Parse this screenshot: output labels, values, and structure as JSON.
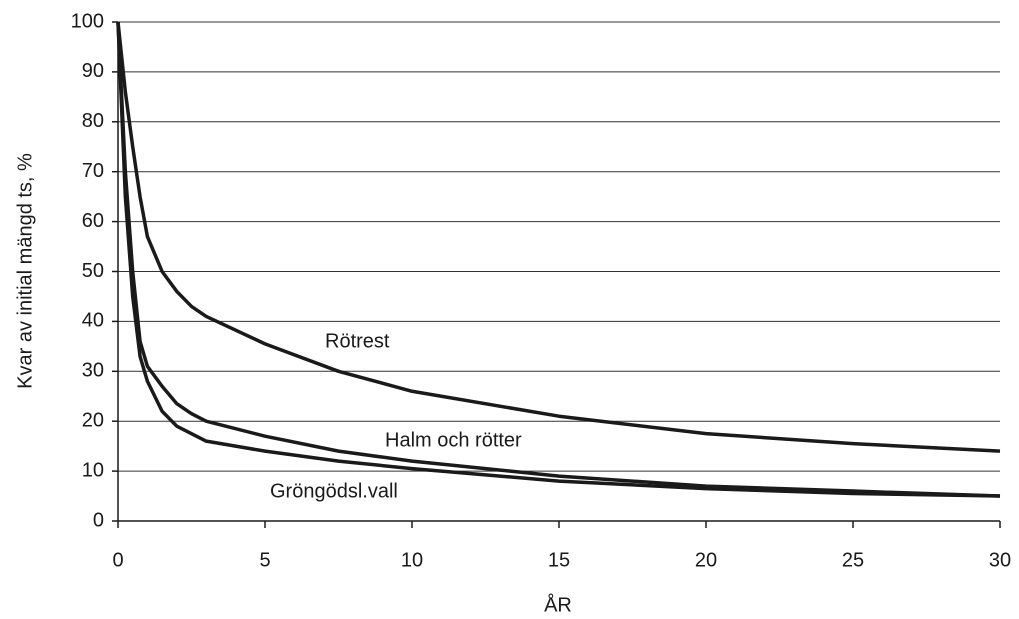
{
  "chart_data": {
    "type": "line",
    "xlabel": "ÅR",
    "ylabel": "Kvar av initial mängd ts, %",
    "x": [
      0,
      0.25,
      0.5,
      0.75,
      1,
      1.5,
      2,
      2.5,
      3,
      5,
      7.5,
      10,
      15,
      20,
      25,
      30
    ],
    "series": [
      {
        "name": "Rötrest",
        "color": "#1a1a1a",
        "values": [
          100,
          86,
          75,
          65,
          57,
          50,
          46,
          43,
          41,
          35.5,
          30,
          26,
          21,
          17.5,
          15.5,
          14
        ]
      },
      {
        "name": "Halm och rötter",
        "color": "#1a1a1a",
        "values": [
          100,
          70,
          50,
          36,
          31,
          27,
          23.5,
          21.5,
          20,
          17,
          14,
          12,
          9,
          7,
          6,
          5
        ]
      },
      {
        "name": "Gröngödsl.vall",
        "color": "#1a1a1a",
        "values": [
          100,
          65,
          45,
          33,
          28,
          22,
          19,
          17.5,
          16,
          14,
          12,
          10.5,
          8,
          6.5,
          5.5,
          5
        ]
      }
    ],
    "xlim": [
      0,
      30
    ],
    "xticks": [
      0,
      5,
      10,
      15,
      20,
      25,
      30
    ],
    "ylim": [
      0,
      100
    ],
    "yticks": [
      0,
      10,
      20,
      30,
      40,
      50,
      60,
      70,
      80,
      90,
      100
    ],
    "grid": true
  }
}
